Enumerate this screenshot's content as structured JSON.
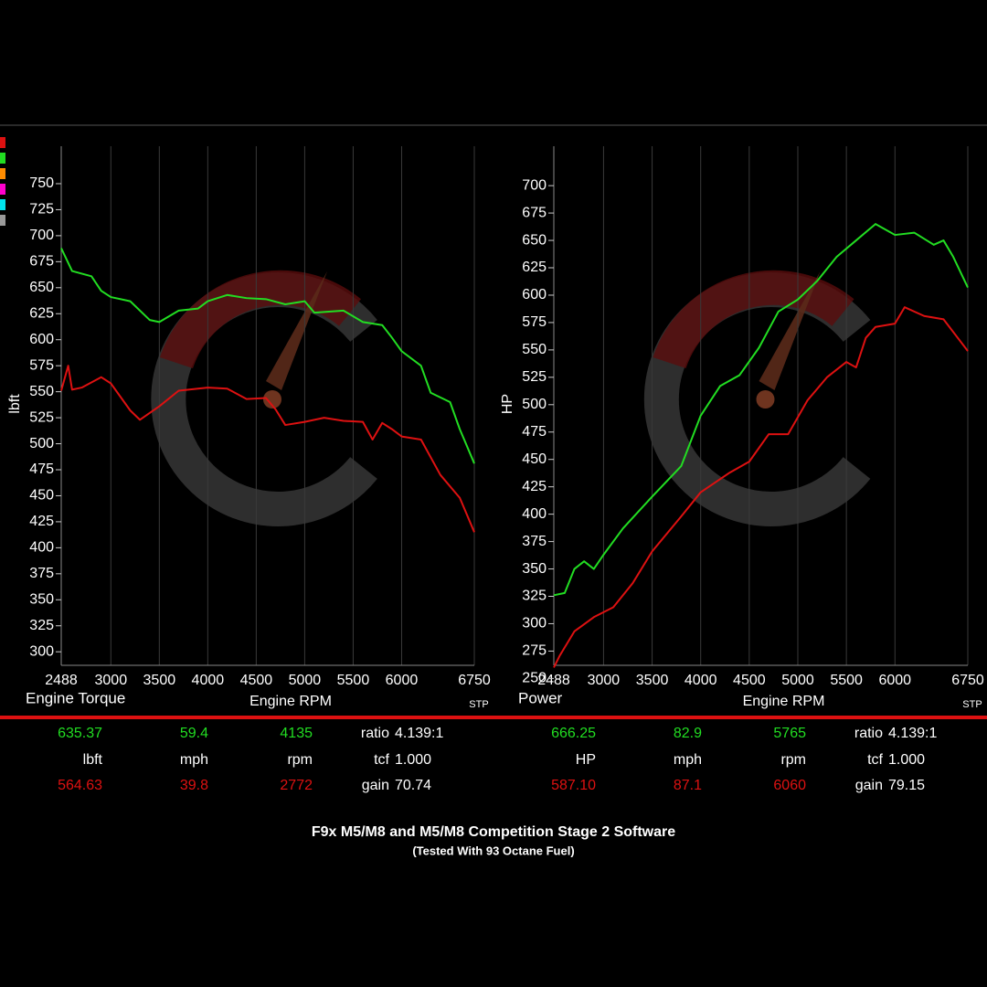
{
  "chart_data": [
    {
      "type": "line",
      "title": "Engine Torque",
      "x_label": "Engine RPM",
      "y_label": "lbft",
      "corner_label": "STP",
      "xlim": [
        2488,
        6750
      ],
      "xticks": [
        2488,
        3000,
        3500,
        4000,
        4500,
        5000,
        5500,
        6000,
        6750
      ],
      "ylim": [
        287,
        786
      ],
      "yticks": [
        300,
        325,
        350,
        375,
        400,
        425,
        450,
        475,
        500,
        525,
        550,
        575,
        600,
        625,
        650,
        675,
        700,
        725,
        750
      ],
      "grid": true,
      "series": [
        {
          "color": "#22dd22",
          "x": [
            2488,
            2600,
            2800,
            2900,
            3000,
            3200,
            3400,
            3500,
            3700,
            3900,
            4000,
            4200,
            4400,
            4600,
            4800,
            5000,
            5100,
            5400,
            5600,
            5800,
            5900,
            6000,
            6200,
            6300,
            6500,
            6600,
            6750
          ],
          "values": [
            688,
            666,
            661,
            647,
            641,
            637,
            619,
            617,
            628,
            630,
            637,
            643,
            640,
            639,
            634,
            637,
            626,
            628,
            617,
            614,
            602,
            589,
            575,
            549,
            540,
            514,
            481
          ]
        },
        {
          "color": "#dd1111",
          "x": [
            2488,
            2560,
            2600,
            2700,
            2900,
            3000,
            3200,
            3300,
            3500,
            3700,
            4000,
            4200,
            4400,
            4600,
            4700,
            4800,
            5000,
            5200,
            5400,
            5600,
            5700,
            5800,
            5900,
            6000,
            6200,
            6400,
            6600,
            6750
          ],
          "values": [
            551,
            575,
            552,
            554,
            564,
            558,
            532,
            523,
            536,
            551,
            554,
            553,
            543,
            544,
            533,
            518,
            521,
            525,
            522,
            521,
            504,
            520,
            514,
            507,
            504,
            470,
            448,
            415
          ]
        }
      ]
    },
    {
      "type": "line",
      "title": "Power",
      "x_label": "Engine RPM",
      "y_label": "HP",
      "corner_label": "STP",
      "xlim": [
        2488,
        6750
      ],
      "xticks": [
        2488,
        3000,
        3500,
        4000,
        4500,
        5000,
        5500,
        6000,
        6750
      ],
      "ylim": [
        262,
        736
      ],
      "yticks": [
        250,
        275,
        300,
        325,
        350,
        375,
        400,
        425,
        450,
        475,
        500,
        525,
        550,
        575,
        600,
        625,
        650,
        675,
        700
      ],
      "grid": true,
      "series": [
        {
          "color": "#22dd22",
          "x": [
            2488,
            2600,
            2700,
            2800,
            2900,
            3000,
            3200,
            3500,
            3800,
            4000,
            4200,
            4400,
            4600,
            4800,
            5000,
            5200,
            5400,
            5600,
            5800,
            6000,
            6200,
            6400,
            6500,
            6600,
            6750
          ],
          "values": [
            326,
            328,
            350,
            357,
            350,
            363,
            387,
            416,
            444,
            490,
            517,
            527,
            552,
            585,
            596,
            613,
            635,
            650,
            665,
            655,
            657,
            646,
            650,
            635,
            607
          ]
        },
        {
          "color": "#dd1111",
          "x": [
            2488,
            2550,
            2700,
            2900,
            3100,
            3300,
            3500,
            3800,
            4000,
            4300,
            4500,
            4700,
            4900,
            5100,
            5300,
            5500,
            5600,
            5700,
            5800,
            6000,
            6100,
            6300,
            6500,
            6750
          ],
          "values": [
            260,
            271,
            293,
            306,
            315,
            337,
            366,
            398,
            420,
            438,
            448,
            473,
            473,
            504,
            525,
            539,
            534,
            561,
            571,
            574,
            589,
            581,
            578,
            549
          ]
        }
      ]
    }
  ],
  "readouts": [
    {
      "rows": [
        [
          "635.37",
          "59.4",
          "4135",
          "ratio",
          "4.139:1"
        ],
        [
          "lbft",
          "mph",
          "rpm",
          "tcf",
          "1.000"
        ],
        [
          "564.63",
          "39.8",
          "2772",
          "gain",
          "70.74"
        ]
      ]
    },
    {
      "rows": [
        [
          "666.25",
          "82.9",
          "5765",
          "ratio",
          "4.139:1"
        ],
        [
          "HP",
          "mph",
          "rpm",
          "tcf",
          "1.000"
        ],
        [
          "587.10",
          "87.1",
          "6060",
          "gain",
          "79.15"
        ]
      ]
    }
  ],
  "footer": {
    "title": "F9x M5/M8 and M5/M8 Competition Stage 2 Software",
    "subtitle": "(Tested With 93 Octane Fuel)"
  }
}
